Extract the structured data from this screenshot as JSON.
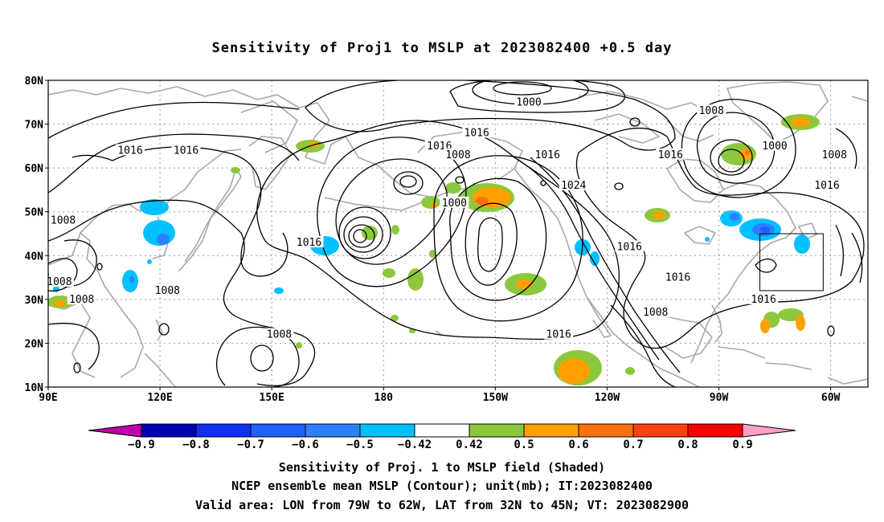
{
  "title": "Sensitivity of Proj1 to MSLP at 2023082400 +0.5 day",
  "map": {
    "lon_range": [
      90,
      310
    ],
    "lat_range": [
      10,
      80
    ],
    "lat_ticks": [
      {
        "lat": 80,
        "label": "80N"
      },
      {
        "lat": 70,
        "label": "70N"
      },
      {
        "lat": 60,
        "label": "60N"
      },
      {
        "lat": 50,
        "label": "50N"
      },
      {
        "lat": 40,
        "label": "40N"
      },
      {
        "lat": 30,
        "label": "30N"
      },
      {
        "lat": 20,
        "label": "20N"
      },
      {
        "lat": 10,
        "label": "10N"
      }
    ],
    "lon_ticks": [
      {
        "lon": 90,
        "label": "90E"
      },
      {
        "lon": 120,
        "label": "120E"
      },
      {
        "lon": 150,
        "label": "150E"
      },
      {
        "lon": 180,
        "label": "180"
      },
      {
        "lon": 210,
        "label": "150W"
      },
      {
        "lon": 240,
        "label": "120W"
      },
      {
        "lon": 270,
        "label": "90W"
      },
      {
        "lon": 300,
        "label": "60W"
      }
    ],
    "valid_box": {
      "lon_min": 281,
      "lon_max": 298,
      "lat_min": 32,
      "lat_max": 45
    },
    "contour_labels": [
      {
        "text": "1000",
        "lon": 219,
        "lat": 75
      },
      {
        "text": "1008",
        "lon": 268,
        "lat": 73
      },
      {
        "text": "1016",
        "lon": 205,
        "lat": 68
      },
      {
        "text": "1016",
        "lon": 112,
        "lat": 64
      },
      {
        "text": "1016",
        "lon": 127,
        "lat": 64
      },
      {
        "text": "1016",
        "lon": 195,
        "lat": 65
      },
      {
        "text": "1008",
        "lon": 200,
        "lat": 63
      },
      {
        "text": "1016",
        "lon": 224,
        "lat": 63
      },
      {
        "text": "1016",
        "lon": 257,
        "lat": 63
      },
      {
        "text": "1000",
        "lon": 285,
        "lat": 65
      },
      {
        "text": "1008",
        "lon": 301,
        "lat": 63
      },
      {
        "text": "1024",
        "lon": 231,
        "lat": 56
      },
      {
        "text": "1000",
        "lon": 199,
        "lat": 52
      },
      {
        "text": "1016",
        "lon": 299,
        "lat": 56
      },
      {
        "text": "1008",
        "lon": 94,
        "lat": 48
      },
      {
        "text": "1016",
        "lon": 160,
        "lat": 43
      },
      {
        "text": "1016",
        "lon": 246,
        "lat": 42
      },
      {
        "text": "1008",
        "lon": 93,
        "lat": 34
      },
      {
        "text": "1016",
        "lon": 259,
        "lat": 35
      },
      {
        "text": "1008",
        "lon": 122,
        "lat": 32
      },
      {
        "text": "1008",
        "lon": 99,
        "lat": 30
      },
      {
        "text": "1016",
        "lon": 282,
        "lat": 30
      },
      {
        "text": "1008",
        "lon": 253,
        "lat": 27
      },
      {
        "text": "1008",
        "lon": 152,
        "lat": 22
      },
      {
        "text": "1016",
        "lon": 227,
        "lat": 22
      }
    ]
  },
  "colorbar": {
    "colors": [
      "#c000a8",
      "#0000b4",
      "#1030f0",
      "#2060ff",
      "#2c80ff",
      "#00c0ff",
      "#ffffff",
      "#8cc83c",
      "#ffa000",
      "#ff7010",
      "#ff4010",
      "#ff0000",
      "#ffa0c8"
    ],
    "labels": [
      "−0.9",
      "−0.8",
      "−0.7",
      "−0.6",
      "−0.5",
      "−0.42",
      "0.42",
      "0.5",
      "0.6",
      "0.7",
      "0.8",
      "0.9"
    ]
  },
  "captions": {
    "line1": "Sensitivity of Proj. 1 to MSLP field (Shaded)",
    "line2": "NCEP ensemble mean MSLP (Contour); unit(mb); IT:2023082400",
    "line3": "Valid area: LON from 79W to 62W, LAT from 32N to 45N; VT: 2023082900"
  }
}
